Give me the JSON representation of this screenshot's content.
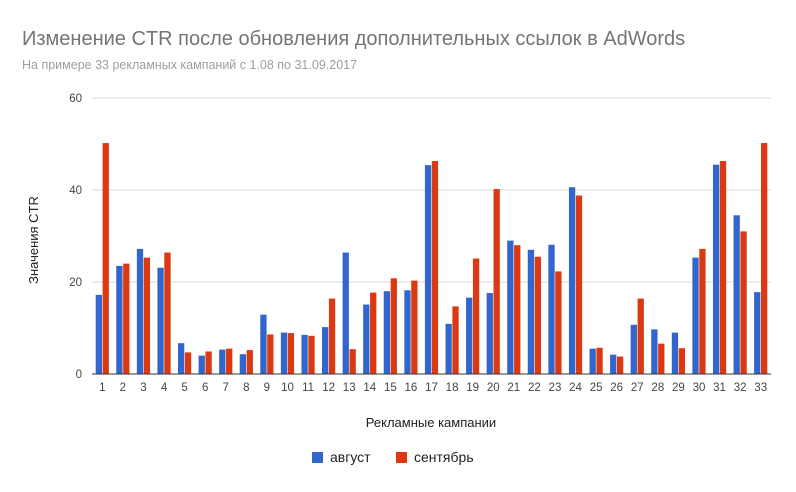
{
  "chart_data": {
    "type": "bar",
    "title": "Изменение CTR после обновления дополнительных ссылок в AdWords",
    "subtitle": "На примере 33 рекламных кампаний с 1.08 по 31.09.2017",
    "xlabel": "Рекламные кампании",
    "ylabel": "Значения CTR",
    "ylim": [
      0,
      60
    ],
    "yticks": [
      0,
      20,
      40,
      60
    ],
    "grid": true,
    "legend_position": "bottom",
    "categories": [
      "1",
      "2",
      "3",
      "4",
      "5",
      "6",
      "7",
      "8",
      "9",
      "10",
      "11",
      "12",
      "13",
      "14",
      "15",
      "16",
      "17",
      "18",
      "19",
      "20",
      "21",
      "22",
      "23",
      "24",
      "25",
      "26",
      "27",
      "28",
      "29",
      "30",
      "31",
      "32",
      "33"
    ],
    "series": [
      {
        "name": "август",
        "color": "#3366cc",
        "values": [
          17.2,
          23.5,
          27.2,
          23.1,
          6.7,
          4.0,
          5.3,
          4.3,
          12.9,
          9.0,
          8.5,
          10.2,
          26.4,
          15.1,
          18.0,
          18.2,
          45.4,
          10.9,
          16.6,
          17.6,
          29.0,
          27.0,
          28.1,
          40.6,
          5.5,
          4.2,
          10.7,
          9.7,
          9.0,
          25.3,
          45.5,
          34.5,
          17.8
        ]
      },
      {
        "name": "сентябрь",
        "color": "#dc3912",
        "values": [
          50.2,
          24.0,
          25.3,
          26.4,
          4.7,
          4.9,
          5.5,
          5.2,
          8.6,
          8.9,
          8.3,
          16.4,
          5.4,
          17.7,
          20.8,
          20.3,
          46.3,
          14.7,
          25.1,
          40.2,
          28.0,
          25.5,
          22.3,
          38.8,
          5.7,
          3.8,
          16.4,
          6.6,
          5.6,
          27.2,
          46.3,
          31.0,
          50.2
        ]
      }
    ]
  }
}
